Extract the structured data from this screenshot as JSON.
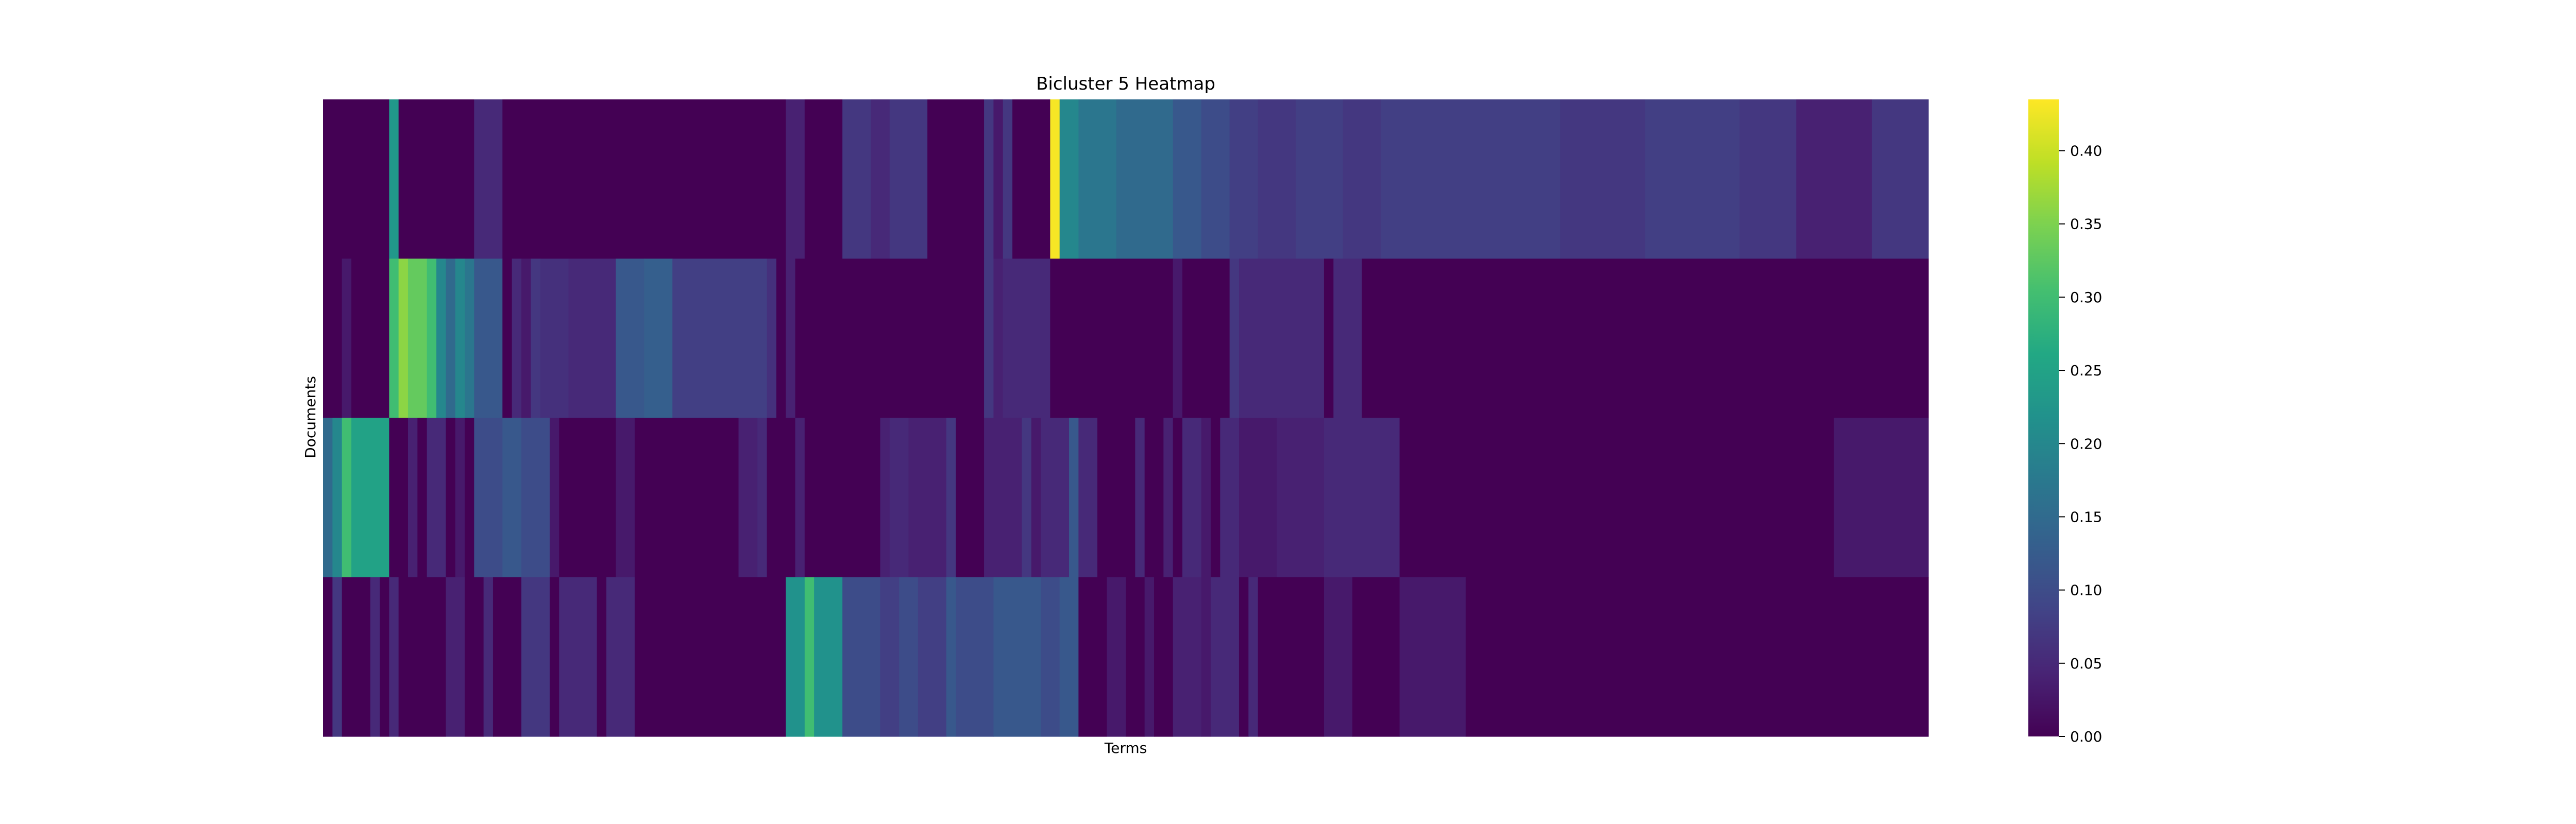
{
  "chart_data": {
    "type": "heatmap",
    "title": "Bicluster 5 Heatmap",
    "xlabel": "Terms",
    "ylabel": "Documents",
    "colormap": "viridis",
    "vmin": 0.0,
    "vmax": 0.435,
    "colorbar_ticks": [
      "0.00",
      "0.05",
      "0.10",
      "0.15",
      "0.20",
      "0.25",
      "0.30",
      "0.35",
      "0.40"
    ],
    "colorbar_tick_values": [
      0.0,
      0.05,
      0.1,
      0.15,
      0.2,
      0.25,
      0.3,
      0.35,
      0.4
    ],
    "n_terms": 170,
    "rows": [
      [
        [
          0,
          7,
          0.0
        ],
        [
          7,
          8,
          0.23
        ],
        [
          8,
          16,
          0.0
        ],
        [
          16,
          19,
          0.05
        ],
        [
          19,
          49,
          0.0
        ],
        [
          49,
          51,
          0.04
        ],
        [
          51,
          55,
          0.0
        ],
        [
          55,
          58,
          0.07
        ],
        [
          58,
          60,
          0.05
        ],
        [
          60,
          64,
          0.07
        ],
        [
          64,
          70,
          0.0
        ],
        [
          70,
          71,
          0.07
        ],
        [
          71,
          72,
          0.03
        ],
        [
          72,
          73,
          0.07
        ],
        [
          73,
          77,
          0.0
        ],
        [
          77,
          78,
          0.43
        ],
        [
          78,
          80,
          0.2
        ],
        [
          80,
          84,
          0.17
        ],
        [
          84,
          90,
          0.15
        ],
        [
          90,
          93,
          0.12
        ],
        [
          93,
          96,
          0.1
        ],
        [
          96,
          99,
          0.08
        ],
        [
          99,
          103,
          0.07
        ],
        [
          103,
          108,
          0.08
        ],
        [
          108,
          112,
          0.07
        ],
        [
          112,
          120,
          0.08
        ],
        [
          120,
          131,
          0.08
        ],
        [
          131,
          140,
          0.07
        ],
        [
          140,
          150,
          0.08
        ],
        [
          150,
          156,
          0.07
        ],
        [
          156,
          164,
          0.04
        ],
        [
          164,
          170,
          0.07
        ]
      ],
      [
        [
          0,
          2,
          0.0
        ],
        [
          2,
          3,
          0.03
        ],
        [
          3,
          7,
          0.0
        ],
        [
          7,
          8,
          0.3
        ],
        [
          8,
          9,
          0.36
        ],
        [
          9,
          11,
          0.33
        ],
        [
          11,
          12,
          0.3
        ],
        [
          12,
          13,
          0.2
        ],
        [
          13,
          14,
          0.15
        ],
        [
          14,
          15,
          0.2
        ],
        [
          15,
          16,
          0.17
        ],
        [
          16,
          19,
          0.12
        ],
        [
          19,
          20,
          0.0
        ],
        [
          20,
          21,
          0.05
        ],
        [
          21,
          22,
          0.03
        ],
        [
          22,
          23,
          0.07
        ],
        [
          23,
          26,
          0.06
        ],
        [
          26,
          31,
          0.05
        ],
        [
          31,
          34,
          0.12
        ],
        [
          34,
          37,
          0.13
        ],
        [
          37,
          47,
          0.08
        ],
        [
          47,
          48,
          0.06
        ],
        [
          48,
          49,
          0.0
        ],
        [
          49,
          50,
          0.04
        ],
        [
          50,
          70,
          0.0
        ],
        [
          70,
          71,
          0.07
        ],
        [
          71,
          72,
          0.04
        ],
        [
          72,
          77,
          0.05
        ],
        [
          77,
          90,
          0.0
        ],
        [
          90,
          91,
          0.03
        ],
        [
          91,
          96,
          0.0
        ],
        [
          96,
          97,
          0.07
        ],
        [
          97,
          106,
          0.05
        ],
        [
          106,
          107,
          0.0
        ],
        [
          107,
          110,
          0.05
        ],
        [
          110,
          111,
          0.0
        ],
        [
          111,
          170,
          0.0
        ]
      ],
      [
        [
          0,
          1,
          0.15
        ],
        [
          1,
          2,
          0.2
        ],
        [
          2,
          3,
          0.3
        ],
        [
          3,
          4,
          0.25
        ],
        [
          4,
          7,
          0.25
        ],
        [
          7,
          9,
          0.0
        ],
        [
          9,
          10,
          0.04
        ],
        [
          10,
          11,
          0.0
        ],
        [
          11,
          13,
          0.05
        ],
        [
          13,
          14,
          0.0
        ],
        [
          14,
          15,
          0.03
        ],
        [
          15,
          16,
          0.0
        ],
        [
          16,
          19,
          0.1
        ],
        [
          19,
          21,
          0.12
        ],
        [
          21,
          24,
          0.1
        ],
        [
          24,
          25,
          0.03
        ],
        [
          25,
          31,
          0.0
        ],
        [
          31,
          33,
          0.03
        ],
        [
          33,
          44,
          0.0
        ],
        [
          44,
          46,
          0.04
        ],
        [
          46,
          47,
          0.05
        ],
        [
          47,
          50,
          0.0
        ],
        [
          50,
          51,
          0.04
        ],
        [
          51,
          59,
          0.0
        ],
        [
          59,
          60,
          0.04
        ],
        [
          60,
          62,
          0.05
        ],
        [
          62,
          66,
          0.04
        ],
        [
          66,
          67,
          0.07
        ],
        [
          67,
          70,
          0.0
        ],
        [
          70,
          74,
          0.04
        ],
        [
          74,
          75,
          0.07
        ],
        [
          75,
          76,
          0.03
        ],
        [
          76,
          79,
          0.05
        ],
        [
          79,
          80,
          0.12
        ],
        [
          80,
          82,
          0.05
        ],
        [
          82,
          86,
          0.0
        ],
        [
          86,
          87,
          0.05
        ],
        [
          87,
          89,
          0.0
        ],
        [
          89,
          90,
          0.04
        ],
        [
          90,
          91,
          0.0
        ],
        [
          91,
          93,
          0.05
        ],
        [
          93,
          94,
          0.03
        ],
        [
          94,
          95,
          0.0
        ],
        [
          95,
          97,
          0.05
        ],
        [
          97,
          101,
          0.03
        ],
        [
          101,
          106,
          0.04
        ],
        [
          106,
          114,
          0.05
        ],
        [
          114,
          160,
          0.0
        ],
        [
          160,
          170,
          0.03
        ]
      ],
      [
        [
          0,
          1,
          0.0
        ],
        [
          1,
          2,
          0.07
        ],
        [
          2,
          5,
          0.0
        ],
        [
          5,
          6,
          0.05
        ],
        [
          6,
          7,
          0.0
        ],
        [
          7,
          8,
          0.05
        ],
        [
          8,
          13,
          0.0
        ],
        [
          13,
          15,
          0.04
        ],
        [
          15,
          17,
          0.0
        ],
        [
          17,
          18,
          0.05
        ],
        [
          18,
          21,
          0.0
        ],
        [
          21,
          24,
          0.07
        ],
        [
          24,
          25,
          0.0
        ],
        [
          25,
          27,
          0.05
        ],
        [
          27,
          29,
          0.05
        ],
        [
          29,
          30,
          0.0
        ],
        [
          30,
          31,
          0.05
        ],
        [
          31,
          33,
          0.05
        ],
        [
          33,
          49,
          0.0
        ],
        [
          49,
          51,
          0.22
        ],
        [
          51,
          52,
          0.3
        ],
        [
          52,
          55,
          0.22
        ],
        [
          55,
          59,
          0.1
        ],
        [
          59,
          61,
          0.08
        ],
        [
          61,
          63,
          0.1
        ],
        [
          63,
          66,
          0.08
        ],
        [
          66,
          67,
          0.12
        ],
        [
          67,
          71,
          0.1
        ],
        [
          71,
          76,
          0.12
        ],
        [
          76,
          78,
          0.1
        ],
        [
          78,
          80,
          0.12
        ],
        [
          80,
          83,
          0.0
        ],
        [
          83,
          85,
          0.03
        ],
        [
          85,
          87,
          0.0
        ],
        [
          87,
          88,
          0.03
        ],
        [
          88,
          90,
          0.0
        ],
        [
          90,
          93,
          0.04
        ],
        [
          93,
          94,
          0.03
        ],
        [
          94,
          97,
          0.05
        ],
        [
          97,
          98,
          0.0
        ],
        [
          98,
          99,
          0.05
        ],
        [
          99,
          106,
          0.0
        ],
        [
          106,
          109,
          0.03
        ],
        [
          109,
          114,
          0.0
        ],
        [
          114,
          121,
          0.03
        ],
        [
          121,
          170,
          0.0
        ]
      ]
    ]
  }
}
